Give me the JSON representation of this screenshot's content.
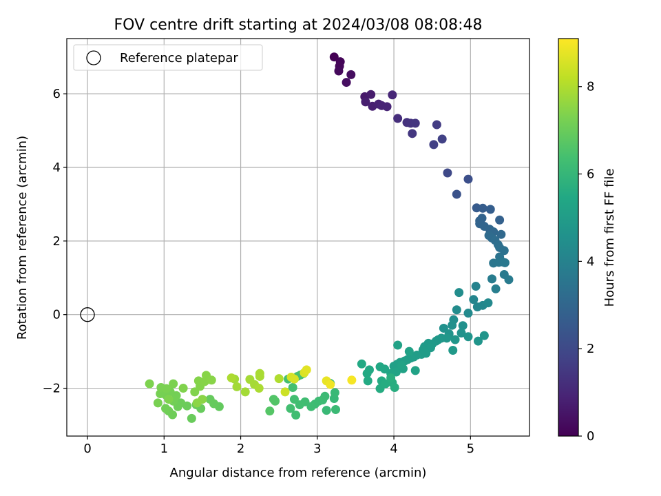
{
  "chart_data": {
    "type": "scatter",
    "title": "FOV centre drift starting at 2024/03/08 08:08:48",
    "xlabel": "Angular distance from reference (arcmin)",
    "ylabel": "Rotation from reference (arcmin)",
    "xlim": [
      -0.27,
      5.77
    ],
    "ylim": [
      -3.3,
      7.5
    ],
    "xticks": [
      0,
      1,
      2,
      3,
      4,
      5
    ],
    "xtick_labels": [
      "0",
      "1",
      "2",
      "3",
      "4",
      "5"
    ],
    "yticks": [
      -2,
      0,
      2,
      4,
      6
    ],
    "ytick_labels": [
      "−2",
      "0",
      "2",
      "4",
      "6"
    ],
    "grid": true,
    "legend": {
      "position": "top-left",
      "entries": [
        {
          "label": "Reference platepar",
          "marker": "open-circle"
        }
      ]
    },
    "reference_point": {
      "x": 0,
      "y": 0,
      "label": "Reference platepar"
    },
    "colorbar": {
      "label": "Hours from first FF file",
      "range": [
        0,
        9.1
      ],
      "ticks": [
        0,
        2,
        4,
        6,
        8
      ],
      "tick_labels": [
        "0",
        "2",
        "4",
        "6",
        "8"
      ],
      "colormap": "viridis"
    },
    "points_columns": [
      "x",
      "y",
      "hours"
    ],
    "points": [
      [
        3.22,
        7.0,
        0.0
      ],
      [
        3.3,
        6.87,
        0.1
      ],
      [
        3.29,
        6.75,
        0.15
      ],
      [
        3.28,
        6.62,
        0.2
      ],
      [
        3.44,
        6.52,
        0.3
      ],
      [
        3.38,
        6.31,
        0.35
      ],
      [
        3.62,
        5.92,
        0.6
      ],
      [
        3.7,
        5.98,
        0.7
      ],
      [
        3.63,
        5.78,
        0.75
      ],
      [
        3.72,
        5.66,
        0.8
      ],
      [
        3.8,
        5.72,
        0.85
      ],
      [
        3.84,
        5.68,
        0.9
      ],
      [
        3.91,
        5.65,
        0.95
      ],
      [
        3.98,
        5.97,
        1.0
      ],
      [
        4.05,
        5.33,
        1.2
      ],
      [
        4.17,
        5.22,
        1.3
      ],
      [
        4.22,
        5.2,
        1.35
      ],
      [
        4.28,
        5.2,
        1.4
      ],
      [
        4.24,
        4.92,
        1.45
      ],
      [
        4.56,
        5.16,
        1.6
      ],
      [
        4.52,
        4.62,
        1.7
      ],
      [
        4.63,
        4.77,
        1.75
      ],
      [
        4.7,
        3.85,
        2.0
      ],
      [
        4.97,
        3.68,
        2.2
      ],
      [
        4.82,
        3.27,
        2.3
      ],
      [
        5.08,
        2.9,
        2.6
      ],
      [
        5.16,
        2.89,
        2.65
      ],
      [
        5.26,
        2.86,
        2.7
      ],
      [
        5.38,
        2.57,
        2.8
      ],
      [
        5.12,
        2.55,
        2.85
      ],
      [
        5.15,
        2.62,
        2.88
      ],
      [
        5.12,
        2.47,
        2.9
      ],
      [
        5.18,
        2.4,
        2.95
      ],
      [
        5.25,
        2.32,
        3.0
      ],
      [
        5.3,
        2.25,
        3.05
      ],
      [
        5.4,
        2.18,
        3.1
      ],
      [
        5.24,
        2.15,
        3.15
      ],
      [
        5.28,
        2.08,
        3.2
      ],
      [
        5.32,
        2.02,
        3.25
      ],
      [
        5.36,
        1.9,
        3.3
      ],
      [
        5.38,
        1.82,
        3.35
      ],
      [
        5.44,
        1.74,
        3.4
      ],
      [
        5.38,
        1.57,
        3.45
      ],
      [
        5.3,
        1.4,
        3.55
      ],
      [
        5.37,
        1.42,
        3.6
      ],
      [
        5.42,
        1.43,
        3.62
      ],
      [
        5.45,
        1.41,
        3.65
      ],
      [
        5.44,
        1.09,
        3.7
      ],
      [
        5.5,
        0.95,
        3.75
      ],
      [
        5.28,
        0.97,
        3.8
      ],
      [
        5.33,
        0.7,
        3.85
      ],
      [
        5.07,
        0.77,
        4.0
      ],
      [
        5.04,
        0.41,
        4.1
      ],
      [
        5.09,
        0.21,
        4.15
      ],
      [
        5.16,
        0.25,
        4.2
      ],
      [
        5.23,
        0.32,
        4.25
      ],
      [
        4.97,
        0.04,
        4.3
      ],
      [
        4.82,
        0.13,
        4.35
      ],
      [
        4.85,
        0.6,
        4.4
      ],
      [
        4.78,
        -0.14,
        4.45
      ],
      [
        4.76,
        -0.29,
        4.5
      ],
      [
        4.9,
        -0.3,
        4.52
      ],
      [
        4.65,
        -0.37,
        4.55
      ],
      [
        4.88,
        -0.5,
        4.6
      ],
      [
        4.72,
        -0.52,
        4.62
      ],
      [
        4.97,
        -0.6,
        4.65
      ],
      [
        5.18,
        -0.57,
        4.7
      ],
      [
        5.1,
        -0.72,
        4.72
      ],
      [
        4.8,
        -0.68,
        4.75
      ],
      [
        4.69,
        -0.64,
        4.78
      ],
      [
        4.62,
        -0.64,
        4.8
      ],
      [
        4.58,
        -0.68,
        4.82
      ],
      [
        4.55,
        -0.72,
        4.84
      ],
      [
        4.77,
        -0.97,
        4.86
      ],
      [
        4.5,
        -0.8,
        4.88
      ],
      [
        4.45,
        -0.78,
        4.9
      ],
      [
        4.4,
        -0.87,
        4.92
      ],
      [
        4.48,
        -0.9,
        4.94
      ],
      [
        4.38,
        -0.96,
        4.96
      ],
      [
        4.42,
        -1.05,
        4.98
      ],
      [
        4.36,
        -1.08,
        5.0
      ],
      [
        4.3,
        -1.1,
        5.02
      ],
      [
        4.26,
        -1.15,
        5.04
      ],
      [
        4.22,
        -1.18,
        5.06
      ],
      [
        4.18,
        -1.22,
        5.08
      ],
      [
        4.14,
        -1.26,
        5.1
      ],
      [
        4.08,
        -1.3,
        5.12
      ],
      [
        4.04,
        -1.35,
        5.14
      ],
      [
        4.0,
        -1.4,
        5.16
      ],
      [
        4.05,
        -0.83,
        5.18
      ],
      [
        4.2,
        -1.0,
        5.2
      ],
      [
        4.28,
        -1.52,
        5.22
      ],
      [
        4.12,
        -1.47,
        5.24
      ],
      [
        4.1,
        -1.38,
        5.26
      ],
      [
        4.03,
        -1.56,
        5.28
      ],
      [
        3.96,
        -1.6,
        5.3
      ],
      [
        3.88,
        -1.48,
        5.4
      ],
      [
        3.82,
        -1.42,
        5.42
      ],
      [
        3.68,
        -1.5,
        5.45
      ],
      [
        3.58,
        -1.34,
        5.48
      ],
      [
        3.65,
        -1.6,
        5.5
      ],
      [
        3.66,
        -1.8,
        5.52
      ],
      [
        3.84,
        -1.8,
        5.55
      ],
      [
        3.82,
        -2.01,
        5.58
      ],
      [
        3.89,
        -1.88,
        5.6
      ],
      [
        3.98,
        -1.85,
        5.62
      ],
      [
        4.01,
        -1.98,
        5.65
      ],
      [
        3.96,
        -1.72,
        5.68
      ],
      [
        3.17,
        -1.87,
        6.0
      ],
      [
        3.22,
        -2.28,
        6.05
      ],
      [
        3.23,
        -2.12,
        6.08
      ],
      [
        3.12,
        -2.6,
        6.1
      ],
      [
        3.24,
        -2.58,
        6.12
      ],
      [
        3.1,
        -2.22,
        6.15
      ],
      [
        3.07,
        -2.32,
        6.18
      ],
      [
        3.02,
        -2.35,
        6.2
      ],
      [
        2.97,
        -2.43,
        6.22
      ],
      [
        2.92,
        -2.5,
        6.24
      ],
      [
        2.84,
        -2.37,
        6.26
      ],
      [
        2.77,
        -2.45,
        6.28
      ],
      [
        2.72,
        -2.73,
        6.3
      ],
      [
        2.7,
        -2.3,
        6.32
      ],
      [
        2.65,
        -2.55,
        6.34
      ],
      [
        2.68,
        -1.98,
        6.36
      ],
      [
        2.62,
        -1.75,
        6.38
      ],
      [
        2.78,
        -1.64,
        6.4
      ],
      [
        2.82,
        -1.6,
        6.42
      ],
      [
        2.74,
        -1.68,
        6.44
      ],
      [
        2.43,
        -2.3,
        6.6
      ],
      [
        2.45,
        -2.35,
        6.62
      ],
      [
        2.38,
        -2.62,
        6.65
      ],
      [
        1.72,
        -2.5,
        6.9
      ],
      [
        1.65,
        -2.42,
        6.92
      ],
      [
        1.6,
        -2.3,
        6.94
      ],
      [
        1.48,
        -2.55,
        6.96
      ],
      [
        1.42,
        -2.45,
        6.98
      ],
      [
        1.36,
        -2.82,
        7.0
      ],
      [
        1.3,
        -2.48,
        7.02
      ],
      [
        1.22,
        -2.4,
        7.04
      ],
      [
        1.18,
        -2.5,
        7.06
      ],
      [
        1.11,
        -2.72,
        7.08
      ],
      [
        1.06,
        -2.62,
        7.1
      ],
      [
        1.02,
        -2.55,
        7.12
      ],
      [
        1.12,
        -2.35,
        7.14
      ],
      [
        1.16,
        -2.2,
        7.16
      ],
      [
        1.08,
        -2.1,
        7.18
      ],
      [
        1.02,
        -2.18,
        7.2
      ],
      [
        0.95,
        -2.15,
        7.22
      ],
      [
        0.92,
        -2.4,
        7.24
      ],
      [
        0.96,
        -1.98,
        7.26
      ],
      [
        1.03,
        -2.01,
        7.28
      ],
      [
        1.12,
        -1.88,
        7.3
      ],
      [
        0.81,
        -1.88,
        7.32
      ],
      [
        1.06,
        -2.3,
        7.34
      ],
      [
        1.25,
        -2.0,
        7.36
      ],
      [
        1.4,
        -2.1,
        7.38
      ],
      [
        1.47,
        -1.95,
        7.4
      ],
      [
        1.45,
        -1.8,
        7.42
      ],
      [
        1.53,
        -1.82,
        7.44
      ],
      [
        1.55,
        -1.65,
        7.46
      ],
      [
        1.62,
        -1.78,
        7.48
      ],
      [
        1.5,
        -2.3,
        7.5
      ],
      [
        1.43,
        -2.4,
        7.52
      ],
      [
        1.92,
        -1.75,
        7.8
      ],
      [
        1.95,
        -1.96,
        7.82
      ],
      [
        2.06,
        -2.1,
        7.84
      ],
      [
        2.12,
        -1.76,
        7.86
      ],
      [
        2.18,
        -1.9,
        7.88
      ],
      [
        2.25,
        -1.68,
        7.9
      ],
      [
        2.25,
        -1.6,
        7.92
      ],
      [
        2.24,
        -2.0,
        7.94
      ],
      [
        1.88,
        -1.72,
        7.96
      ],
      [
        2.5,
        -1.74,
        8.0
      ],
      [
        2.58,
        -2.1,
        8.4
      ],
      [
        2.66,
        -1.7,
        8.5
      ],
      [
        2.7,
        -1.75,
        8.55
      ],
      [
        2.83,
        -1.58,
        8.6
      ],
      [
        2.86,
        -1.5,
        8.7
      ],
      [
        3.12,
        -1.8,
        8.8
      ],
      [
        3.17,
        -1.9,
        8.9
      ],
      [
        3.45,
        -1.78,
        9.0
      ]
    ]
  }
}
